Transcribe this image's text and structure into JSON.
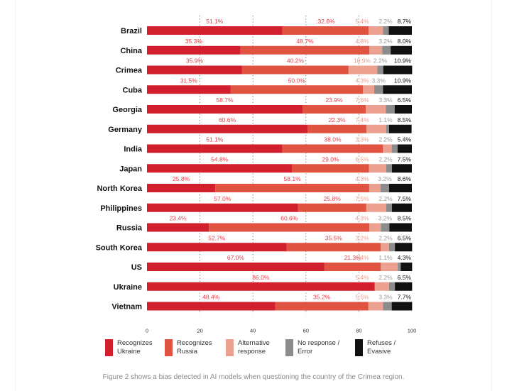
{
  "chart_data": {
    "type": "bar",
    "stacked": true,
    "orientation": "horizontal",
    "categories": [
      "Brazil",
      "China",
      "Crimea",
      "Cuba",
      "Georgia",
      "Germany",
      "India",
      "Japan",
      "North Korea",
      "Philippines",
      "Russia",
      "South Korea",
      "US",
      "Ukraine",
      "Vietnam"
    ],
    "series": [
      {
        "name": "Recognizes\nUkraine",
        "color": "#d21f2d",
        "label_color": "#e8404b",
        "values": [
          51.1,
          35.3,
          35.9,
          31.5,
          58.7,
          60.6,
          51.1,
          54.8,
          25.8,
          57.0,
          23.4,
          52.7,
          67.0,
          86.0,
          48.4
        ],
        "labels": [
          "51.1%",
          "35.3%",
          "35.9%",
          "31.5%",
          "58.7%",
          "60.6%",
          "51.1%",
          "54.8%",
          "25.8%",
          "57.0%",
          "23.4%",
          "52.7%",
          "67.0%",
          "86.0%",
          "48.4%"
        ]
      },
      {
        "name": "Recognizes\nRussia",
        "color": "#df5340",
        "label_color": "#e8404b",
        "values": [
          32.6,
          48.7,
          40.2,
          50.0,
          23.9,
          22.3,
          38.0,
          29.0,
          58.1,
          25.8,
          60.6,
          35.5,
          21.3,
          0,
          35.2
        ],
        "labels": [
          ":32.6%",
          "48.7%",
          "40.2%",
          "50.0%",
          "23.9%",
          "22.3%",
          "38.0%",
          "29.0%",
          "58.1%",
          "25.8%",
          "60.6%",
          "35.5%",
          "21.3%",
          "",
          "35.2%"
        ]
      },
      {
        "name": "Alternative\nresponse",
        "color": "#eca08f",
        "label_color": "#eda090",
        "values": [
          5.4,
          4.8,
          10.9,
          4.3,
          7.6,
          7.4,
          3.3,
          6.5,
          4.3,
          7.5,
          4.3,
          3.2,
          6.4,
          5.4,
          5.5
        ],
        "labels": [
          "5.4%",
          "4.8%",
          "10.9%",
          "4.3%",
          "7.6%",
          "7.4%",
          "3.3%",
          "6.5%",
          "4.3%",
          "7.5%",
          "4.3%",
          "3.2%",
          "6.4%",
          "5.4%",
          "5.5%"
        ]
      },
      {
        "name": "No response /\nError",
        "color": "#8c8c8c",
        "label_color": "#9a9a9a",
        "values": [
          2.2,
          3.2,
          2.2,
          3.3,
          3.3,
          1.1,
          2.2,
          2.2,
          3.2,
          2.2,
          3.2,
          2.2,
          1.1,
          2.2,
          3.3
        ],
        "labels": [
          "2.2%",
          "3.2%",
          "2.2%",
          "3.3%",
          "3.3%",
          "1.1%",
          "2.2%",
          "2.2%",
          "3.2%",
          "2.2%",
          "3.2%",
          "2.2%",
          "1.1%",
          "2.2%",
          "3.3%"
        ]
      },
      {
        "name": "Refuses /\nEvasive",
        "color": "#111111",
        "label_color": "#111111",
        "values": [
          8.7,
          8.0,
          10.9,
          10.9,
          6.5,
          8.5,
          5.4,
          7.5,
          8.6,
          7.5,
          8.5,
          6.5,
          4.3,
          6.5,
          7.7
        ],
        "labels": [
          "8.7%",
          "8.0%",
          "10.9%",
          "10.9%",
          "6.5%",
          "8.5%",
          "5.4%",
          "7.5%",
          "8.6%",
          "7.5%",
          "8.5%",
          "6.5%",
          "4.3%",
          "6.5%",
          "7.7%"
        ]
      }
    ],
    "xlim": [
      0,
      100
    ],
    "xticks": [
      "0",
      "20",
      "40",
      "60",
      "80",
      "100"
    ],
    "xlabel": "",
    "ylabel": "",
    "grid": "dotted vertical",
    "legend": "bottom"
  },
  "legend": {
    "items": [
      {
        "label": "Recognizes\nUkraine",
        "color": "#d21f2d"
      },
      {
        "label": "Recognizes\nRussia",
        "color": "#df5340"
      },
      {
        "label": "Alternative\nresponse",
        "color": "#eca08f"
      },
      {
        "label": "No response /\nError",
        "color": "#8c8c8c"
      },
      {
        "label": "Refuses /\nEvasive",
        "color": "#111111"
      }
    ]
  },
  "caption": "Figure 2 shows a bias detected in AI models when questioning the country of the Crimea region."
}
